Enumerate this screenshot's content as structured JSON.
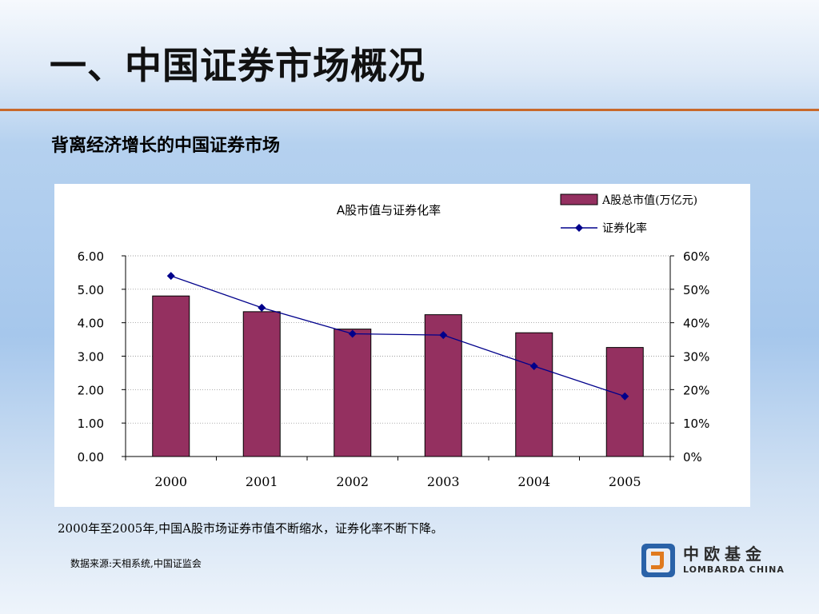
{
  "slide": {
    "title": "一、中国证券市场概况",
    "subtitle": "背离经济增长的中国证券市场",
    "note": "2000年至2005年,中国A股市场证券市值不断缩水，证券化率不断下降。",
    "source": "数据来源:天相系统,中国证监会"
  },
  "logo": {
    "chinese": "中欧基金",
    "english": "LOMBARDA CHINA"
  },
  "colors": {
    "bar": "#943060",
    "line": "#00008b",
    "rule": "#c8682a"
  },
  "chart_data": {
    "type": "bar",
    "title": "A股市值与证券化率",
    "categories": [
      "2000",
      "2001",
      "2002",
      "2003",
      "2004",
      "2005"
    ],
    "series": [
      {
        "name": "A股总市值(万亿元)",
        "type": "bar",
        "axis": "left",
        "values": [
          4.8,
          4.33,
          3.81,
          4.24,
          3.7,
          3.26
        ]
      },
      {
        "name": "证券化率",
        "type": "line",
        "axis": "right",
        "values": [
          0.54,
          0.445,
          0.367,
          0.363,
          0.27,
          0.18
        ]
      }
    ],
    "y_left": {
      "ylim": [
        0,
        6
      ],
      "ticks": [
        "0.00",
        "1.00",
        "2.00",
        "3.00",
        "4.00",
        "5.00",
        "6.00"
      ]
    },
    "y_right": {
      "ylim": [
        0,
        0.6
      ],
      "ticks": [
        "0%",
        "10%",
        "20%",
        "30%",
        "40%",
        "50%",
        "60%"
      ]
    },
    "grid": true,
    "legend": "top-right"
  }
}
